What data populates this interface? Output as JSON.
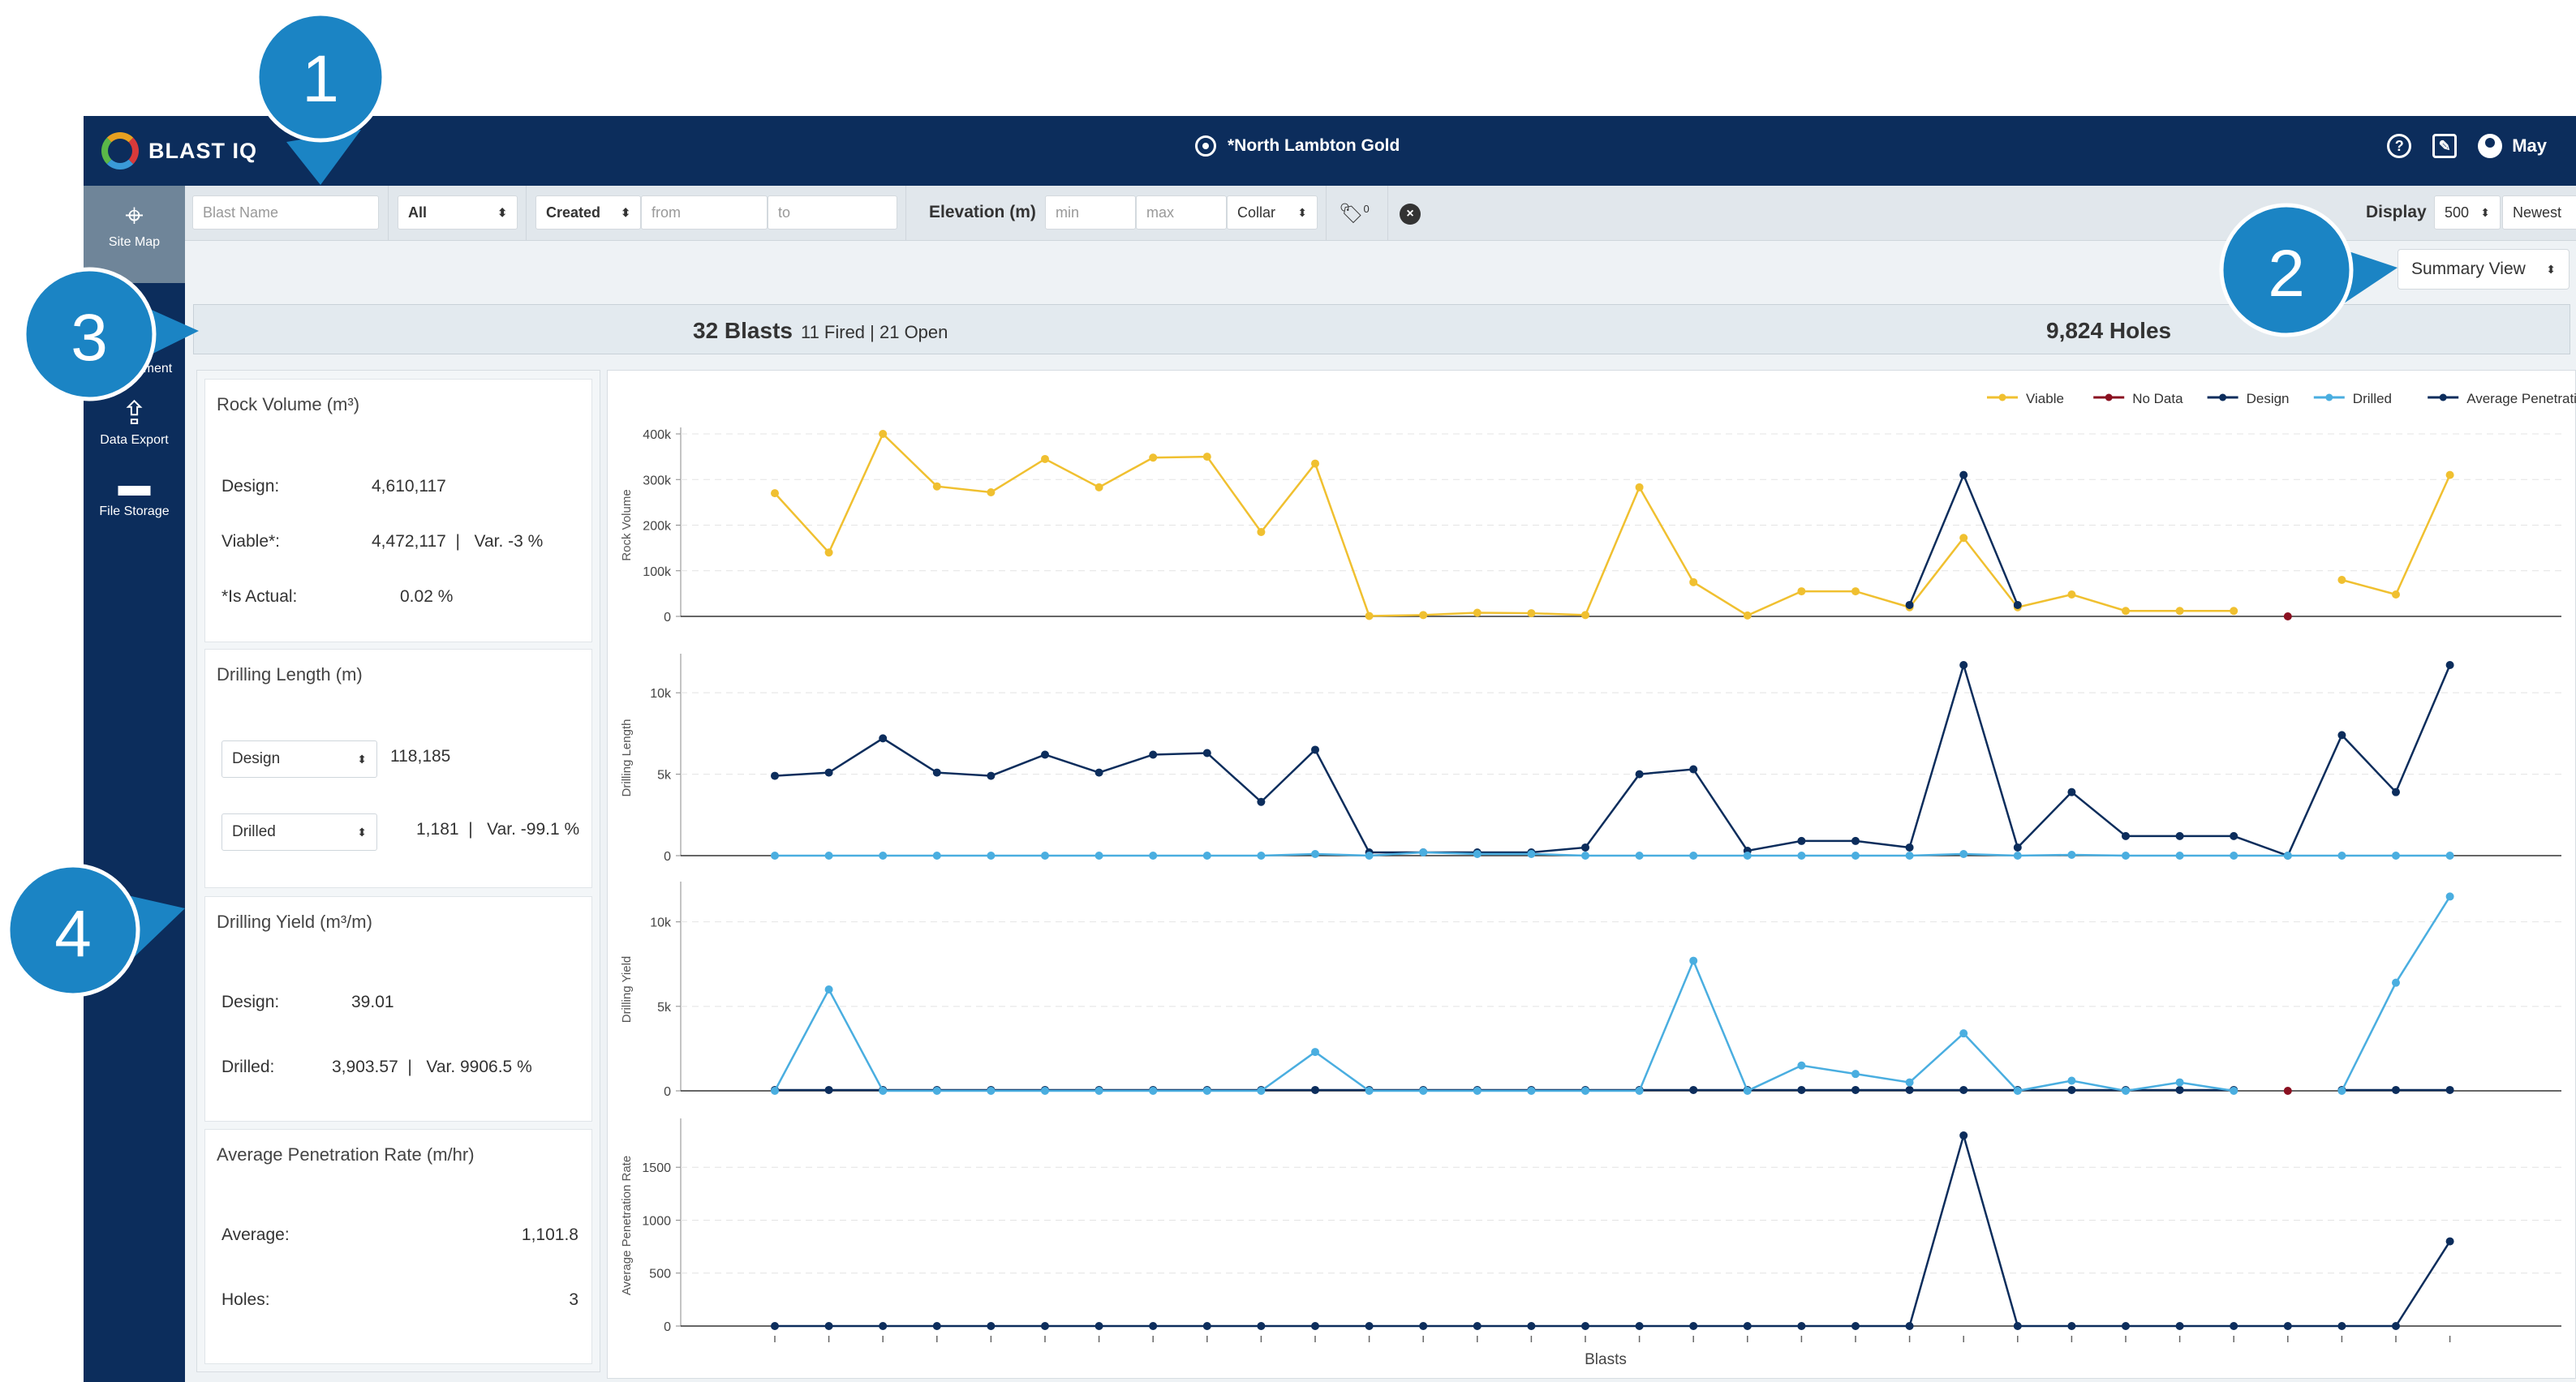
{
  "app": {
    "brand": "BLAST IQ",
    "site_name": "*North Lambton Gold",
    "user_name": "May"
  },
  "sidebar": {
    "items": [
      {
        "label": "Site Map",
        "icon": "map-icon",
        "active": true
      },
      {
        "label": "Blast Management",
        "icon": "list-settings-icon"
      },
      {
        "label": "Data Export",
        "icon": "upload-icon"
      },
      {
        "label": "File Storage",
        "icon": "folder-icon"
      }
    ]
  },
  "filters": {
    "blast_name_placeholder": "Blast Name",
    "status_value": "All",
    "date_field_value": "Created",
    "from_placeholder": "from",
    "to_placeholder": "to",
    "elevation_label": "Elevation (m)",
    "min_placeholder": "min",
    "max_placeholder": "max",
    "elevation_ref_value": "Collar",
    "tag_count": "0",
    "display_label": "Display",
    "display_count_value": "500",
    "sort_value": "Newest"
  },
  "view": {
    "selected": "Summary View"
  },
  "summary": {
    "blasts": "32 Blasts",
    "blast_breakdown": "11 Fired | 21 Open",
    "holes": "9,824 Holes"
  },
  "cards": {
    "rock_volume": {
      "title": "Rock Volume (m³)",
      "design_label": "Design:",
      "design_value": "4,610,117",
      "viable_label": "Viable*:",
      "viable_value": "4,472,117  |   Var. -3 %",
      "actual_label": "*Is Actual:",
      "actual_value": "0.02 %"
    },
    "drilling_length": {
      "title": "Drilling Length (m)",
      "select1": "Design",
      "value1": "118,185",
      "select2": "Drilled",
      "value2": "1,181  |   Var. -99.1 %"
    },
    "drilling_yield": {
      "title": "Drilling Yield (m³/m)",
      "design_label": "Design:",
      "design_value": "39.01",
      "drilled_label": "Drilled:",
      "drilled_value": "3,903.57  |   Var. 9906.5 %"
    },
    "penetration": {
      "title": "Average Penetration Rate (m/hr)",
      "average_label": "Average:",
      "average_value": "1,101.8",
      "holes_label": "Holes:",
      "holes_value": "3"
    }
  },
  "callouts": [
    "1",
    "2",
    "3",
    "4"
  ],
  "chart_data": {
    "type": "line",
    "xlabel": "Blasts",
    "legend": [
      {
        "name": "Viable",
        "color": "#f0c030"
      },
      {
        "name": "No Data",
        "color": "#8a1020"
      },
      {
        "name": "Design",
        "color": "#0c2d5c"
      },
      {
        "name": "Drilled",
        "color": "#4aaee0"
      },
      {
        "name": "Average Penetration Rate",
        "color": "#0c2d5c"
      }
    ],
    "legend_position": "top-right",
    "categories_count": 32,
    "panels": [
      {
        "ylabel": "Rock Volume",
        "ylim": [
          0,
          400000
        ],
        "yticks": [
          0,
          100000,
          200000,
          300000,
          400000
        ],
        "yticklabels": [
          "0",
          "100k",
          "200k",
          "300k",
          "400k"
        ],
        "series": [
          {
            "name": "Viable",
            "color": "#f0c030",
            "values": [
              270000,
              140000,
              400000,
              285000,
              272000,
              345000,
              283000,
              348000,
              350000,
              185000,
              335000,
              1000,
              3000,
              8000,
              7000,
              3000,
              283000,
              75000,
              2000,
              55000,
              55000,
              20000,
              172000,
              20000,
              48000,
              12000,
              12000,
              12000,
              null,
              80000,
              48000,
              310000
            ]
          },
          {
            "name": "Design",
            "color": "#0c2d5c",
            "values": [
              null,
              null,
              null,
              null,
              null,
              null,
              null,
              null,
              null,
              null,
              null,
              null,
              null,
              null,
              null,
              null,
              null,
              null,
              null,
              null,
              null,
              25000,
              310000,
              25000,
              null,
              null,
              null,
              null,
              null,
              null,
              null,
              null
            ]
          },
          {
            "name": "No Data",
            "color": "#8a1020",
            "values": [
              null,
              null,
              null,
              null,
              null,
              null,
              null,
              null,
              null,
              null,
              null,
              null,
              null,
              null,
              null,
              null,
              null,
              null,
              null,
              null,
              null,
              null,
              null,
              null,
              null,
              null,
              null,
              null,
              0,
              null,
              null,
              null
            ]
          }
        ]
      },
      {
        "ylabel": "Drilling Length",
        "ylim": [
          0,
          12000
        ],
        "yticks": [
          0,
          5000,
          10000
        ],
        "yticklabels": [
          "0",
          "5k",
          "10k"
        ],
        "series": [
          {
            "name": "Design",
            "color": "#0c2d5c",
            "values": [
              4900,
              5100,
              7200,
              5100,
              4900,
              6200,
              5100,
              6200,
              6300,
              3300,
              6500,
              200,
              200,
              200,
              200,
              500,
              5000,
              5300,
              300,
              900,
              900,
              500,
              11700,
              500,
              3900,
              1200,
              1200,
              1200,
              0,
              7400,
              3900,
              11700
            ]
          },
          {
            "name": "Drilled",
            "color": "#4aaee0",
            "values": [
              0,
              0,
              0,
              0,
              0,
              0,
              0,
              0,
              0,
              0,
              100,
              0,
              200,
              100,
              100,
              0,
              0,
              0,
              0,
              0,
              0,
              0,
              100,
              0,
              50,
              0,
              0,
              0,
              0,
              0,
              0,
              0
            ]
          }
        ]
      },
      {
        "ylabel": "Drilling Yield",
        "ylim": [
          0,
          12000
        ],
        "yticks": [
          0,
          5000,
          10000
        ],
        "yticklabels": [
          "0",
          "5k",
          "10k"
        ],
        "series": [
          {
            "name": "Design",
            "color": "#0c2d5c",
            "values": [
              50,
              50,
              50,
              50,
              50,
              50,
              50,
              50,
              50,
              50,
              50,
              50,
              50,
              50,
              50,
              50,
              50,
              50,
              50,
              50,
              50,
              50,
              50,
              50,
              50,
              50,
              50,
              50,
              null,
              50,
              50,
              50
            ]
          },
          {
            "name": "Drilled",
            "color": "#4aaee0",
            "values": [
              0,
              6000,
              0,
              0,
              0,
              0,
              0,
              0,
              0,
              0,
              2300,
              0,
              0,
              0,
              0,
              0,
              0,
              7700,
              0,
              1500,
              1000,
              500,
              3400,
              0,
              600,
              0,
              500,
              0,
              null,
              0,
              6400,
              11500
            ]
          },
          {
            "name": "No Data",
            "color": "#8a1020",
            "values": [
              null,
              null,
              null,
              null,
              null,
              null,
              null,
              null,
              null,
              null,
              null,
              null,
              null,
              null,
              null,
              null,
              null,
              null,
              null,
              null,
              null,
              null,
              null,
              null,
              null,
              null,
              null,
              null,
              0,
              null,
              null,
              null
            ]
          }
        ]
      },
      {
        "ylabel": "Average Penetration Rate",
        "ylim": [
          0,
          1900
        ],
        "yticks": [
          0,
          500,
          1000,
          1500
        ],
        "yticklabels": [
          "0",
          "500",
          "1000",
          "1500"
        ],
        "series": [
          {
            "name": "Average Penetration Rate",
            "color": "#0c2d5c",
            "values": [
              0,
              0,
              0,
              0,
              0,
              0,
              0,
              0,
              0,
              0,
              0,
              0,
              0,
              0,
              0,
              0,
              0,
              0,
              0,
              0,
              0,
              0,
              1800,
              0,
              0,
              0,
              0,
              0,
              0,
              0,
              0,
              800
            ]
          }
        ]
      }
    ]
  }
}
